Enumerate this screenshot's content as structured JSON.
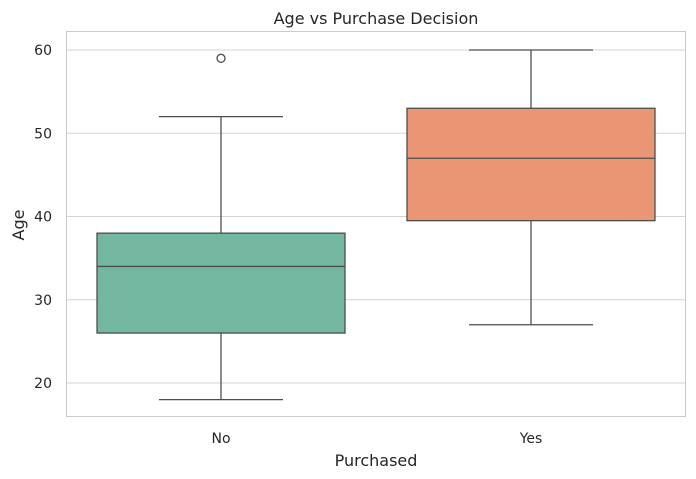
{
  "chart_data": {
    "type": "box",
    "title": "Age vs Purchase Decision",
    "xlabel": "Purchased",
    "ylabel": "Age",
    "ylim": [
      16,
      62
    ],
    "yticks": [
      20,
      30,
      40,
      50,
      60
    ],
    "grid": "horizontal",
    "categories": [
      "No",
      "Yes"
    ],
    "boxes": [
      {
        "category": "No",
        "whisker_low": 18,
        "q1": 26,
        "median": 34,
        "q3": 38,
        "whisker_high": 52,
        "outliers": [
          59
        ],
        "color": "#73b7a0"
      },
      {
        "category": "Yes",
        "whisker_low": 27,
        "q1": 39.5,
        "median": 47,
        "q3": 53,
        "whisker_high": 60,
        "outliers": [],
        "color": "#ea9675"
      }
    ],
    "colors": {
      "line": "#4d4d4d",
      "grid": "#d3d3d3",
      "frame": "#cccccc"
    }
  }
}
